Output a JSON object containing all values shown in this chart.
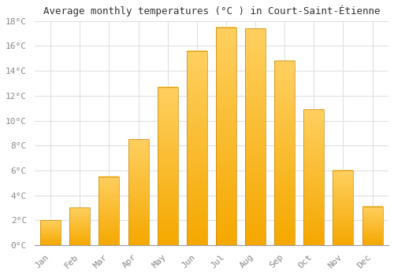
{
  "title": "Average monthly temperatures (°C ) in Court-Saint-Étienne",
  "months": [
    "Jan",
    "Feb",
    "Mar",
    "Apr",
    "May",
    "Jun",
    "Jul",
    "Aug",
    "Sep",
    "Oct",
    "Nov",
    "Dec"
  ],
  "values": [
    2.0,
    3.0,
    5.5,
    8.5,
    12.7,
    15.6,
    17.5,
    17.4,
    14.8,
    10.9,
    6.0,
    3.1
  ],
  "bar_color_bottom": "#F5A800",
  "bar_color_top": "#FFD060",
  "ylim": [
    0,
    18
  ],
  "yticks": [
    0,
    2,
    4,
    6,
    8,
    10,
    12,
    14,
    16,
    18
  ],
  "ytick_labels": [
    "0°C",
    "2°C",
    "4°C",
    "6°C",
    "8°C",
    "10°C",
    "12°C",
    "14°C",
    "16°C",
    "18°C"
  ],
  "background_color": "#FFFFFF",
  "plot_bg_color": "#FFFFFF",
  "grid_color": "#E0E0E0",
  "title_fontsize": 9,
  "tick_fontsize": 8,
  "tick_color": "#888888",
  "bar_edge_color": "#C8880A",
  "bar_edge_width": 0.5
}
